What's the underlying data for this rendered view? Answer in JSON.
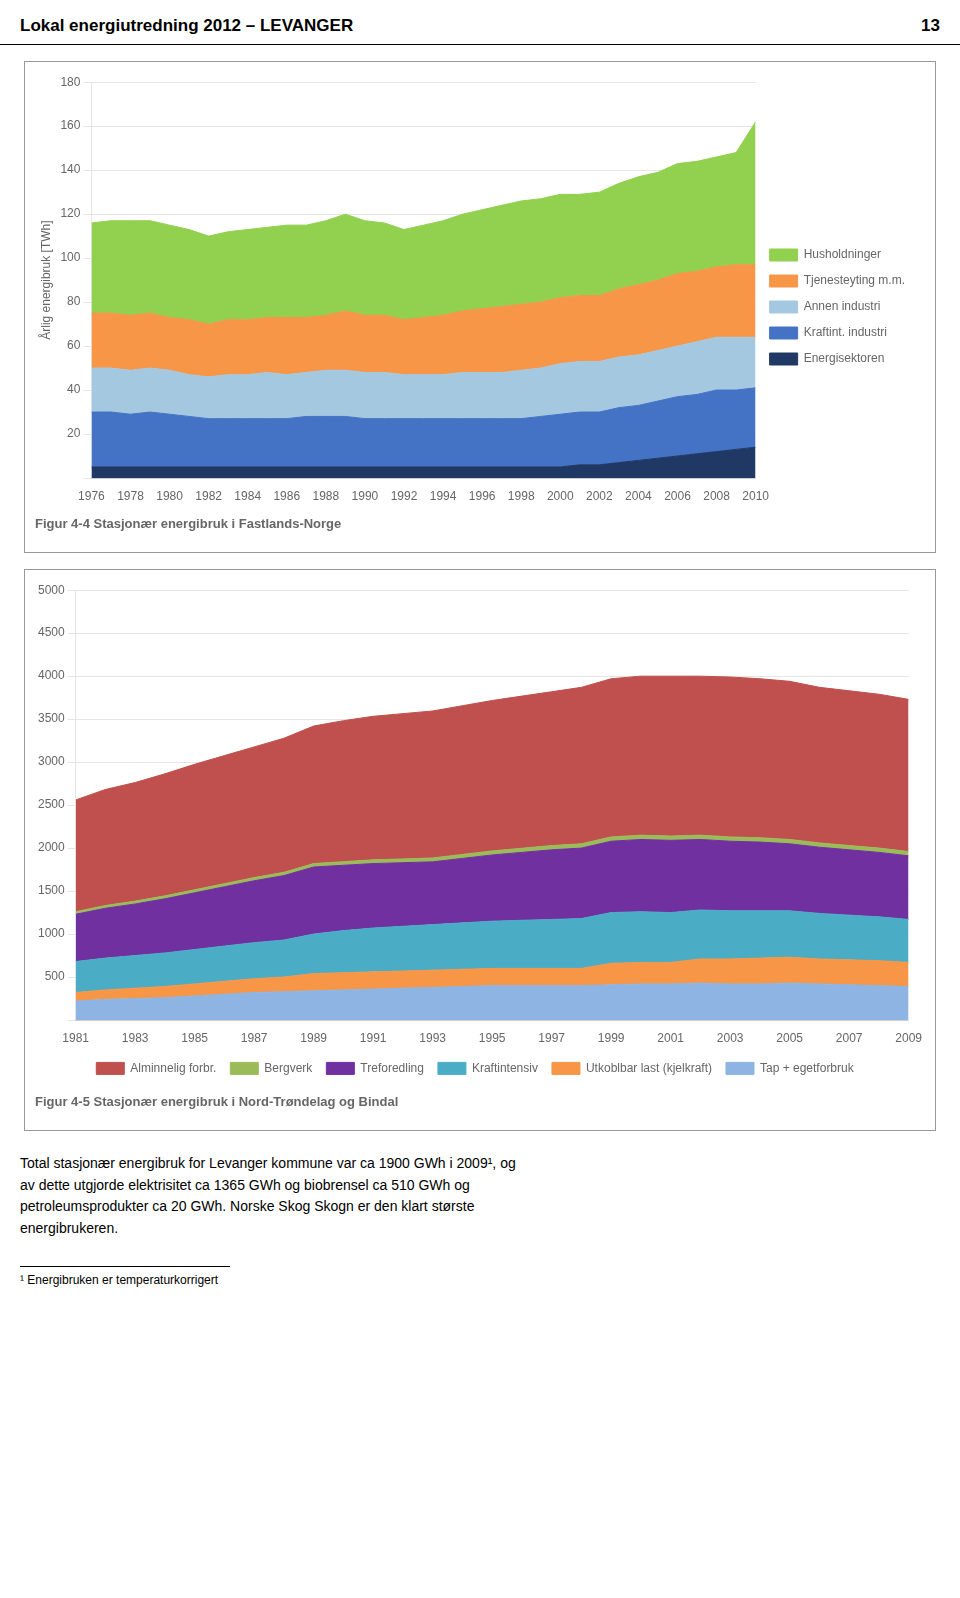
{
  "title": "Lokal energiutredning 2012 – LEVANGER",
  "annotations": [
    "13",
    "Total stasjonær energibruk for Levanger kommune var ca 1900 GWh i 2009¹, og\nav dette utgjorde elektrisitet ca 1365 GWh og biobrensel ca 510 GWh og\npetroleumsprodukter ca 20 GWh. Norske Skog Skogn er den klart største\nenergibrukeren.",
    "¹ Energibruken er temperaturkorrigert"
  ],
  "chart_data": [
    {
      "type": "area",
      "stacked": true,
      "grid": true,
      "legend": "right",
      "title": "Figur 4-4 Stasjonær energibruk i Fastlands-Norge",
      "ylabel": "Årlig energibruk [TWh]",
      "x": [
        1976,
        1977,
        1978,
        1979,
        1980,
        1981,
        1982,
        1983,
        1984,
        1985,
        1986,
        1987,
        1988,
        1989,
        1990,
        1991,
        1992,
        1993,
        1994,
        1995,
        1996,
        1997,
        1998,
        1999,
        2000,
        2001,
        2002,
        2003,
        2004,
        2005,
        2006,
        2007,
        2008,
        2009,
        2010
      ],
      "xlim": [
        1976,
        2010
      ],
      "xticks": [
        1976,
        1978,
        1980,
        1982,
        1984,
        1986,
        1988,
        1990,
        1992,
        1994,
        1996,
        1998,
        2000,
        2002,
        2004,
        2006,
        2008,
        2010
      ],
      "ylim": [
        0,
        180
      ],
      "yticks": [
        {
          "value": 0,
          "label": null
        },
        20,
        40,
        60,
        80,
        100,
        120,
        140,
        160,
        180
      ],
      "series": [
        {
          "name": "Husholdninger",
          "color": "#92d050",
          "values": [
            41,
            42,
            43,
            42,
            42,
            41,
            40,
            40,
            41,
            41,
            42,
            42,
            43,
            44,
            43,
            42,
            41,
            42,
            43,
            44,
            45,
            46,
            47,
            47,
            47,
            46,
            47,
            48,
            49,
            49,
            50,
            50,
            50,
            51,
            65
          ]
        },
        {
          "name": "Tjenesteyting m.m.",
          "color": "#f79646",
          "values": [
            25,
            25,
            25,
            25,
            24,
            25,
            24,
            25,
            25,
            25,
            26,
            25,
            25,
            27,
            26,
            26,
            25,
            26,
            27,
            28,
            29,
            30,
            30,
            30,
            30,
            30,
            30,
            31,
            32,
            32,
            33,
            32,
            32,
            33,
            33
          ]
        },
        {
          "name": "Annen industri",
          "color": "#a5c8e1",
          "values": [
            20,
            20,
            20,
            20,
            20,
            19,
            19,
            20,
            20,
            21,
            20,
            20,
            21,
            21,
            21,
            21,
            20,
            20,
            20,
            21,
            21,
            21,
            22,
            22,
            23,
            23,
            23,
            23,
            23,
            23,
            23,
            24,
            24,
            24,
            23
          ]
        },
        {
          "name": "Kraftint. industri",
          "color": "#4472c4",
          "values": [
            25,
            25,
            24,
            25,
            24,
            23,
            22,
            22,
            22,
            22,
            22,
            23,
            23,
            23,
            22,
            22,
            22,
            22,
            22,
            22,
            22,
            22,
            22,
            23,
            24,
            24,
            24,
            25,
            25,
            26,
            27,
            27,
            28,
            27,
            27
          ]
        },
        {
          "name": "Energisektoren",
          "color": "#1f3864",
          "values": [
            5,
            5,
            5,
            5,
            5,
            5,
            5,
            5,
            5,
            5,
            5,
            5,
            5,
            5,
            5,
            5,
            5,
            5,
            5,
            5,
            5,
            5,
            5,
            5,
            5,
            6,
            6,
            7,
            8,
            9,
            10,
            11,
            12,
            13,
            14
          ]
        }
      ]
    },
    {
      "type": "area",
      "stacked": true,
      "grid": true,
      "legend": "bottom",
      "title": "Figur 4-5 Stasjonær energibruk i Nord-Trøndelag og Bindal",
      "x": [
        1981,
        1982,
        1983,
        1984,
        1985,
        1986,
        1987,
        1988,
        1989,
        1990,
        1991,
        1992,
        1993,
        1994,
        1995,
        1996,
        1997,
        1998,
        1999,
        2000,
        2001,
        2002,
        2003,
        2004,
        2005,
        2006,
        2007,
        2008,
        2009
      ],
      "xlim": [
        1981,
        2009
      ],
      "xticks": [
        1981,
        1983,
        1985,
        1987,
        1989,
        1991,
        1993,
        1995,
        1997,
        1999,
        2001,
        2003,
        2005,
        2007,
        2009
      ],
      "ylim": [
        0,
        5000
      ],
      "yticks": [
        {
          "value": 0,
          "label": null
        },
        500,
        1000,
        1500,
        2000,
        2500,
        3000,
        3500,
        4000,
        4500,
        5000
      ],
      "series": [
        {
          "name": "Alminnelig forbr.",
          "color": "#c0504d",
          "values": [
            1300,
            1350,
            1380,
            1420,
            1460,
            1490,
            1520,
            1560,
            1600,
            1640,
            1670,
            1690,
            1710,
            1730,
            1750,
            1770,
            1790,
            1820,
            1840,
            1850,
            1860,
            1850,
            1860,
            1850,
            1840,
            1810,
            1800,
            1790,
            1770
          ]
        },
        {
          "name": "Bergverk",
          "color": "#9bbb59",
          "values": [
            30,
            32,
            33,
            34,
            35,
            36,
            37,
            38,
            40,
            42,
            43,
            44,
            45,
            46,
            47,
            48,
            49,
            50,
            50,
            50,
            50,
            50,
            50,
            50,
            50,
            50,
            50,
            50,
            50
          ]
        },
        {
          "name": "Treforedling",
          "color": "#7030a0",
          "values": [
            550,
            580,
            600,
            630,
            660,
            690,
            720,
            750,
            780,
            760,
            750,
            740,
            730,
            750,
            770,
            790,
            810,
            820,
            830,
            840,
            840,
            820,
            810,
            800,
            780,
            770,
            760,
            750,
            740
          ]
        },
        {
          "name": "Kraftintensiv",
          "color": "#4bacc6",
          "values": [
            360,
            370,
            380,
            390,
            400,
            410,
            420,
            430,
            460,
            490,
            510,
            520,
            530,
            540,
            550,
            560,
            570,
            580,
            590,
            590,
            580,
            570,
            560,
            550,
            540,
            530,
            520,
            510,
            500
          ]
        },
        {
          "name": "Utkoblbar last (kjelkraft)",
          "color": "#f79646",
          "values": [
            100,
            110,
            120,
            130,
            140,
            150,
            160,
            170,
            200,
            200,
            200,
            200,
            200,
            200,
            200,
            200,
            200,
            200,
            250,
            250,
            250,
            280,
            290,
            300,
            300,
            290,
            290,
            290,
            280
          ]
        },
        {
          "name": "Tap + egetforbruk",
          "color": "#8db4e2",
          "values": [
            220,
            240,
            250,
            260,
            280,
            300,
            320,
            330,
            340,
            350,
            360,
            370,
            380,
            390,
            400,
            400,
            400,
            400,
            410,
            420,
            420,
            430,
            420,
            420,
            430,
            420,
            410,
            400,
            390
          ]
        }
      ]
    }
  ]
}
